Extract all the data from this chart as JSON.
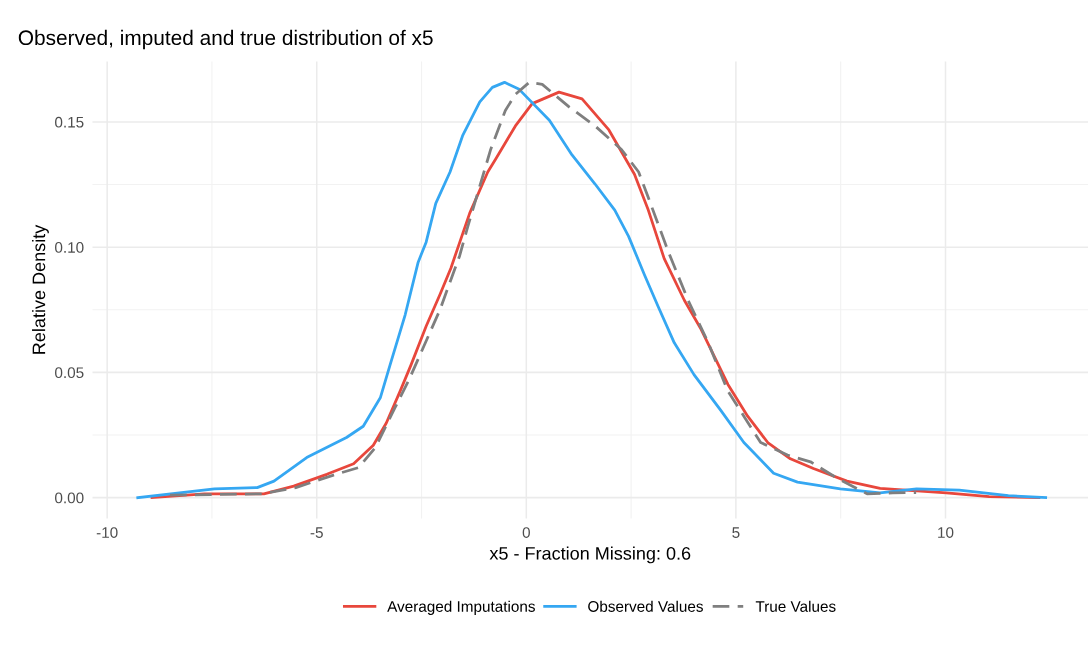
{
  "chart_data": {
    "type": "line",
    "title": "Observed, imputed and true distribution of x5",
    "xlabel": "x5 - Fraction Missing: 0.6",
    "ylabel": "Relative Density",
    "xlim": [
      -10.35,
      13.4
    ],
    "ylim": [
      -0.0083,
      0.1741
    ],
    "xticks": [
      -10,
      -5,
      0,
      5,
      10
    ],
    "yticks": [
      {
        "value": 0,
        "label": "0.00"
      },
      {
        "value": 0.05,
        "label": "0.05"
      },
      {
        "value": 0.1,
        "label": "0.10"
      },
      {
        "value": 0.15,
        "label": "0.15"
      }
    ],
    "grid": true,
    "legend": "bottom",
    "marker": "none",
    "series": [
      {
        "name": "Averaged Imputations",
        "color": "#e8473c",
        "line_style": "solid",
        "x": [
          -8.93,
          -7.68,
          -6.26,
          -5.55,
          -4.76,
          -4.12,
          -3.65,
          -3.34,
          -3.01,
          -2.75,
          -2.39,
          -2.06,
          -1.8,
          -1.35,
          -0.92,
          -0.73,
          -0.26,
          0.14,
          0.78,
          1.33,
          1.97,
          2.58,
          2.91,
          3.29,
          3.77,
          4.17,
          4.81,
          5.28,
          5.76,
          6.3,
          6.85,
          7.65,
          8.44,
          10.02,
          11.04,
          12.23
        ],
        "values": [
          0,
          0.0015,
          0.0015,
          0.0046,
          0.0093,
          0.0135,
          0.0209,
          0.0298,
          0.0425,
          0.053,
          0.0684,
          0.0811,
          0.0916,
          0.1136,
          0.13,
          0.1352,
          0.1484,
          0.1573,
          0.1619,
          0.1592,
          0.1468,
          0.1291,
          0.1148,
          0.0954,
          0.0788,
          0.0672,
          0.0452,
          0.0325,
          0.022,
          0.0155,
          0.0116,
          0.0066,
          0.0037,
          0.0019,
          0.0004,
          0
        ]
      },
      {
        "name": "Observed Values",
        "color": "#35a7f2",
        "line_style": "solid",
        "x": [
          -9.27,
          -7.44,
          -6.42,
          -6.02,
          -5.24,
          -4.29,
          -3.89,
          -3.48,
          -3.25,
          -2.89,
          -2.58,
          -2.39,
          -2.16,
          -1.82,
          -1.52,
          -1.11,
          -0.81,
          -0.52,
          -0.17,
          0.55,
          1.09,
          1.64,
          2.11,
          2.44,
          2.82,
          3.15,
          3.53,
          4.0,
          4.64,
          5.19,
          5.9,
          6.47,
          7.49,
          8.44,
          9.31,
          10.33,
          11.5,
          12.39
        ],
        "values": [
          0,
          0.0035,
          0.004,
          0.0066,
          0.016,
          0.024,
          0.0285,
          0.04,
          0.053,
          0.073,
          0.094,
          0.102,
          0.1175,
          0.13,
          0.1445,
          0.158,
          0.1638,
          0.1658,
          0.163,
          0.1507,
          0.1368,
          0.1252,
          0.1148,
          0.1043,
          0.0889,
          0.0761,
          0.0618,
          0.0491,
          0.0348,
          0.022,
          0.0097,
          0.0062,
          0.0035,
          0.0019,
          0.0035,
          0.003,
          0.0008,
          0
        ]
      },
      {
        "name": "True Values",
        "color": "#7f7f7f",
        "line_style": "dashed",
        "x": [
          -8.5,
          -6.3,
          -5.5,
          -4.6,
          -4.0,
          -3.6,
          -3.13,
          -2.8,
          -2.06,
          -1.87,
          -1.59,
          -1.4,
          -0.85,
          -0.5,
          -0.26,
          0.07,
          0.38,
          1.02,
          1.64,
          2.27,
          2.68,
          2.91,
          3.39,
          3.86,
          4.34,
          4.81,
          5.19,
          5.59,
          6.23,
          6.78,
          7.42,
          8.13,
          8.74,
          9.3
        ],
        "values": [
          0.001,
          0.0015,
          0.004,
          0.009,
          0.012,
          0.02,
          0.036,
          0.047,
          0.075,
          0.0838,
          0.0966,
          0.108,
          0.139,
          0.1546,
          0.161,
          0.1658,
          0.165,
          0.156,
          0.1484,
          0.139,
          0.13,
          0.1198,
          0.0981,
          0.0788,
          0.0618,
          0.0425,
          0.0325,
          0.022,
          0.017,
          0.0143,
          0.0077,
          0.0015,
          0.0019,
          0.002
        ]
      }
    ]
  }
}
